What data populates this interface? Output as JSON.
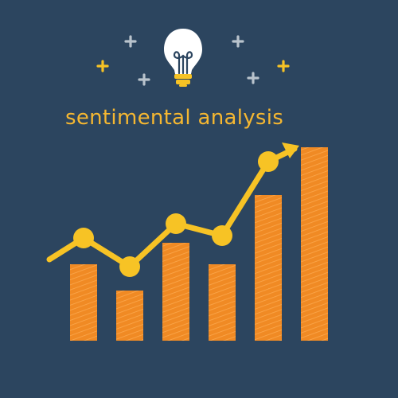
{
  "title": "sentimental analysis",
  "colors": {
    "background": "#2c455f",
    "title": "#f5b731",
    "bar": "#f08a24",
    "bar_hatch": "#ffb25a",
    "line": "#f7c325",
    "bulb_glass": "#ffffff",
    "bulb_filament": "#2c455f",
    "bulb_base": "#f7c325",
    "sparkle_gray": "#b9c3cc",
    "sparkle_yellow": "#f7c325"
  },
  "icons": [
    "light-bulb-icon",
    "sparkle-icon",
    "trend-arrow-icon"
  ],
  "chart_data": {
    "type": "bar",
    "categories": [
      "",
      "",
      "",
      "",
      "",
      ""
    ],
    "values": [
      3.2,
      2.1,
      4.1,
      3.2,
      6.1,
      8.1
    ],
    "trend_line": [
      4.3,
      3.1,
      4.9,
      4.4,
      7.5
    ],
    "trend_direction": "up",
    "ylim": [
      0,
      10
    ],
    "xlabel": "",
    "ylabel": "",
    "grid": false
  }
}
